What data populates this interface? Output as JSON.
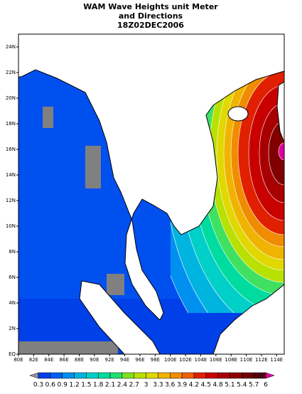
{
  "title": {
    "lines": [
      "WAM Wave Heights unit Meter",
      "and Directions",
      "18Z02DEC2006"
    ]
  },
  "map": {
    "lon_labels": [
      "80E",
      "82E",
      "84E",
      "86E",
      "88E",
      "90E",
      "92E",
      "94E",
      "96E",
      "98E",
      "100E",
      "102E",
      "104E",
      "106E",
      "108E",
      "110E",
      "112E",
      "114E"
    ],
    "lat_labels": [
      "EQ",
      "2N",
      "4N",
      "6N",
      "8N",
      "10N",
      "12N",
      "14N",
      "16N",
      "18N",
      "20N",
      "22N",
      "24N"
    ]
  },
  "colorbar": {
    "levels": [
      0.3,
      0.6,
      0.9,
      1.2,
      1.5,
      1.8,
      2.1,
      2.4,
      2.7,
      3,
      3.3,
      3.6,
      3.9,
      4.2,
      4.5,
      4.8,
      5.1,
      5.4,
      5.7,
      6
    ],
    "colors": [
      "#9090a0",
      "#0040e8",
      "#0060f0",
      "#0090f0",
      "#00b4e0",
      "#00d0c8",
      "#00dca0",
      "#20e070",
      "#80e020",
      "#b8e000",
      "#e0d800",
      "#f0b400",
      "#f08c00",
      "#f06000",
      "#e02000",
      "#c80000",
      "#a80000",
      "#900000",
      "#700000",
      "#500010",
      "#e000a0"
    ]
  }
}
